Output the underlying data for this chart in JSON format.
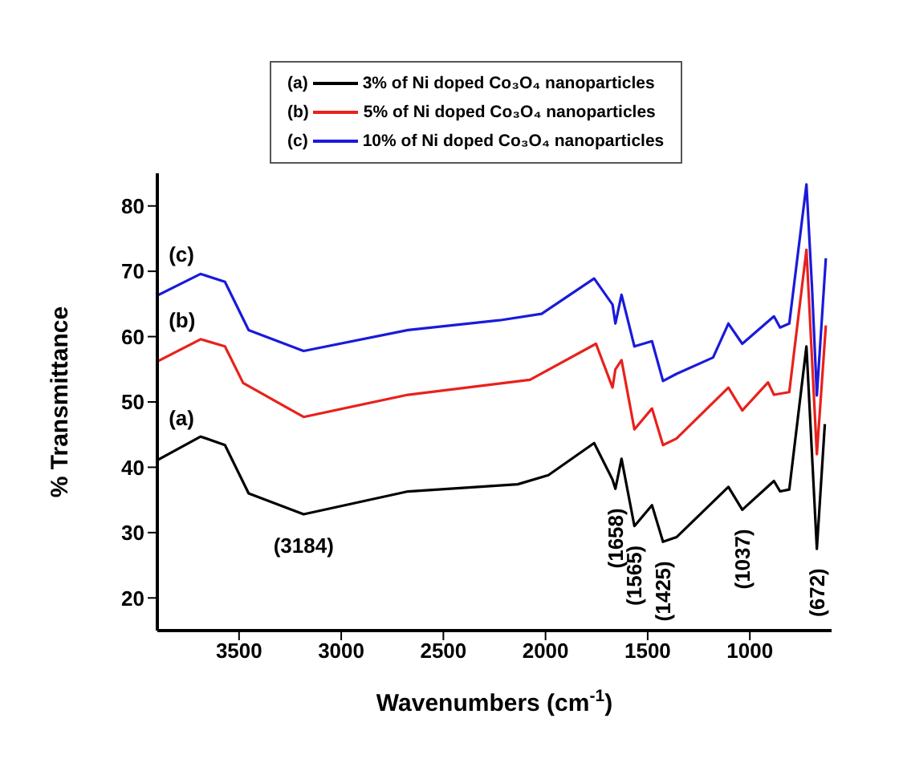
{
  "chart_data": {
    "type": "line",
    "xlabel": "Wavenumbers (cm$^{-1}$)",
    "ylabel": "% Transmittance",
    "xlim": [
      3900,
      600
    ],
    "xticks": [
      3500,
      3000,
      2500,
      2000,
      1500,
      1000
    ],
    "ylim": [
      15,
      85
    ],
    "yticks": [
      20,
      30,
      40,
      50,
      60,
      70,
      80
    ],
    "grid": false,
    "legend": "top",
    "marker": "none",
    "line_style": "solid",
    "series": [
      {
        "name": "3% of Ni doped Co₃O₄ nanoparticles",
        "color": "#000000",
        "x": [
          3900,
          3688,
          3569,
          3453,
          3184,
          2673,
          2136,
          1986,
          1762,
          1672,
          1658,
          1628,
          1565,
          1479,
          1425,
          1359,
          1105,
          1037,
          882,
          852,
          807,
          723,
          672,
          633
        ],
        "values": [
          41.1,
          44.7,
          43.4,
          36,
          32.8,
          36.3,
          37.4,
          38.8,
          43.7,
          38.1,
          36.7,
          41.3,
          31,
          34.2,
          28.6,
          29.3,
          37,
          33.5,
          37.9,
          36.3,
          36.6,
          58.5,
          27.5,
          46.6
        ]
      },
      {
        "name": "5% of Ni doped Co₃O₄ nanoparticles",
        "color": "#e8211c",
        "x": [
          3900,
          3688,
          3569,
          3480,
          3184,
          2673,
          2076,
          1753,
          1672,
          1658,
          1628,
          1565,
          1479,
          1425,
          1359,
          1105,
          1037,
          911,
          882,
          807,
          723,
          672,
          628
        ],
        "values": [
          56.2,
          59.6,
          58.5,
          52.9,
          47.7,
          51.1,
          53.4,
          58.9,
          52.2,
          55,
          56.4,
          45.8,
          49,
          43.4,
          44.4,
          52.2,
          48.7,
          53,
          51.1,
          51.5,
          73.3,
          42,
          61.7
        ]
      },
      {
        "name": "10% of Ni doped Co₃O₄ nanoparticles",
        "color": "#1a1adb",
        "x": [
          3900,
          3688,
          3569,
          3453,
          3184,
          2673,
          2225,
          2019,
          1762,
          1672,
          1658,
          1628,
          1565,
          1479,
          1425,
          1359,
          1180,
          1105,
          1037,
          882,
          852,
          807,
          723,
          696,
          672,
          628
        ],
        "values": [
          66.3,
          69.6,
          68.4,
          61,
          57.8,
          61,
          62.5,
          63.5,
          68.9,
          64.9,
          62,
          66.4,
          58.5,
          59.3,
          53.2,
          54.3,
          56.8,
          62,
          58.9,
          63.1,
          61.4,
          62,
          83.3,
          67.7,
          51,
          72
        ]
      }
    ],
    "annotations": [
      {
        "text": "(a)",
        "x": 3750,
        "y": 44.5
      },
      {
        "text": "(b)",
        "x": 3750,
        "y": 59.5
      },
      {
        "text": "(c)",
        "x": 3750,
        "y": 69.5
      },
      {
        "text": "(3184)",
        "x": 3184,
        "y": 32.8
      },
      {
        "text": "(1658)",
        "x": 1658,
        "y": 36.7
      },
      {
        "text": "(1565)",
        "x": 1565,
        "y": 31
      },
      {
        "text": "(1425)",
        "x": 1425,
        "y": 28.6
      },
      {
        "text": "(1037)",
        "x": 1037,
        "y": 33.5
      },
      {
        "text": "(672)",
        "x": 672,
        "y": 27.5
      }
    ]
  }
}
